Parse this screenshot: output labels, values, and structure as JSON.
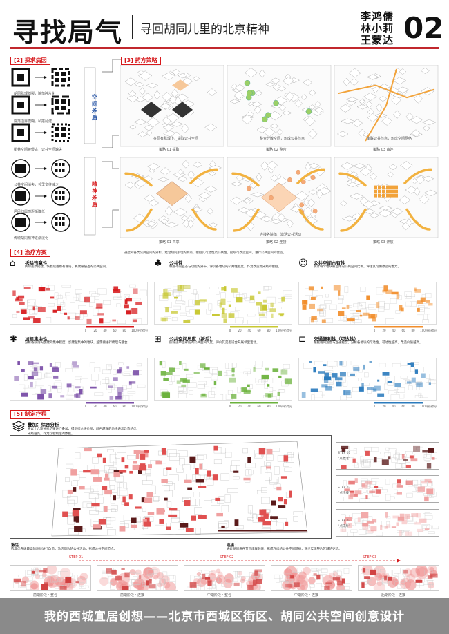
{
  "header": {
    "title": "寻找局气",
    "subtitle": "寻回胡同儿里的北京精神",
    "authors": [
      "李鸿儒",
      "林小莉",
      "王蒙达"
    ],
    "number": "02"
  },
  "sections": {
    "s2": {
      "tag": "[2] 探求病因"
    },
    "s3": {
      "tag": "[3] 药方策略"
    },
    "s4": {
      "tag": "[4] 治疗方案"
    },
    "s5": {
      "tag": "[5] 制定疗程"
    }
  },
  "diagnosis": {
    "space_label": "空间矛盾",
    "spirit_label": "精神矛盾",
    "space_captions": [
      "胡同肌理割裂，院落碎片化",
      "院落边界模糊，私搭乱建",
      "街巷空间被侵占，公共空间缺失"
    ],
    "spirit_captions": [
      "公共空间消失，邻里交往减少",
      "居民归属感逐渐降低",
      "传统胡同精神逐渐淡化"
    ]
  },
  "strategy": {
    "row1_captions": [
      "策略 01 提取",
      "策略 02 整合",
      "策略 03 串连"
    ],
    "row2_captions": [
      "策略 01 共享",
      "策略 02 连接",
      "策略 03 开放"
    ],
    "row1_notes": [
      "在原有肌理上，提取公共空间",
      "整合分散空间，形成公共节点",
      "串联公共节点，形成空间网络"
    ],
    "row2_notes": [
      "",
      "连接各院落，激活公共活动",
      ""
    ],
    "intro": "通过对各类公共空间的分析，结合胡同肌理的特点，依据其可达性及公共性，提取可改造空间，进行公共空间的营造。"
  },
  "treatment": {
    "categories": [
      {
        "name": "拆除违章性",
        "icon": "house-icon",
        "desc": "拆除违章搭建，恢复院落原有格局，释放被侵占的公共空间。"
      },
      {
        "name": "公共性",
        "icon": "tree-icon",
        "desc": "根据不同业态与功能的分布，评价各地块的公共性程度，作为改造优先级的依据。"
      },
      {
        "name": "公共空间占有性",
        "icon": "group-icon",
        "desc": "统计每个地块被占用的公共空间比例，评估其可供改造的潜力。"
      },
      {
        "name": "加建集中性",
        "icon": "cluster-icon",
        "desc": "分析各院落内加建的集中程度，加建越集中的地块，越需要进行梳理与整合。"
      },
      {
        "name": "公共空间尺度（拆后）",
        "icon": "scale-icon",
        "desc": "拆除违章后形成的公共空间尺度，评价其是否适合开展邻里活动。"
      },
      {
        "name": "交通便利性（可达性）",
        "icon": "path-icon",
        "desc": "根据胡同宽度与连通程度，分析各地块的可达性，可达性越高，改造价值越高。"
      }
    ],
    "scale_ticks": [
      "0",
      "20",
      "40",
      "60",
      "80",
      "100"
    ],
    "scale_label": "评价得分"
  },
  "course": {
    "overlay_title": "叠加：综合分析",
    "overlay_desc": "将以上六项分析结果进行叠加，得到综合评价图，颜色越深的地块表示改造的优先级越高，作为疗程制定的依据。",
    "steps": [
      {
        "label": "STEP 01",
        "note": "“点激活”"
      },
      {
        "label": "STEP 02",
        "note": "“点连线”"
      },
      {
        "label": "STEP 03",
        "note": "“点成片”"
      }
    ],
    "activate_title": "激活：",
    "activate_desc": "选取优先级最高的地块进行改造，激活周边的公共活动，形成公共空间节点。",
    "connect_title": "连接：",
    "connect_desc": "通过胡同将各节点串联起来，形成连续的公共空间网络，逐步实现整片区域的更新。",
    "timeline": [
      "STEP 01",
      "STEP 02",
      "STEP 03"
    ],
    "stage_captions": [
      "前期阶段・整合",
      "前期阶段・连接",
      "中期阶段・整合",
      "中期阶段・连接",
      "后期阶段・连接"
    ]
  },
  "footer": {
    "text": "我的西城宜居创想——北京市西城区街区、胡同公共空间创意设计"
  },
  "colors": {
    "accent_red": "#d7191c",
    "yellow": "#c8c832",
    "orange": "#f28e2b",
    "purple": "#7b4fa8",
    "green": "#6bb23c",
    "blue": "#2b7bbd",
    "dark_red": "#5a1a1a"
  }
}
